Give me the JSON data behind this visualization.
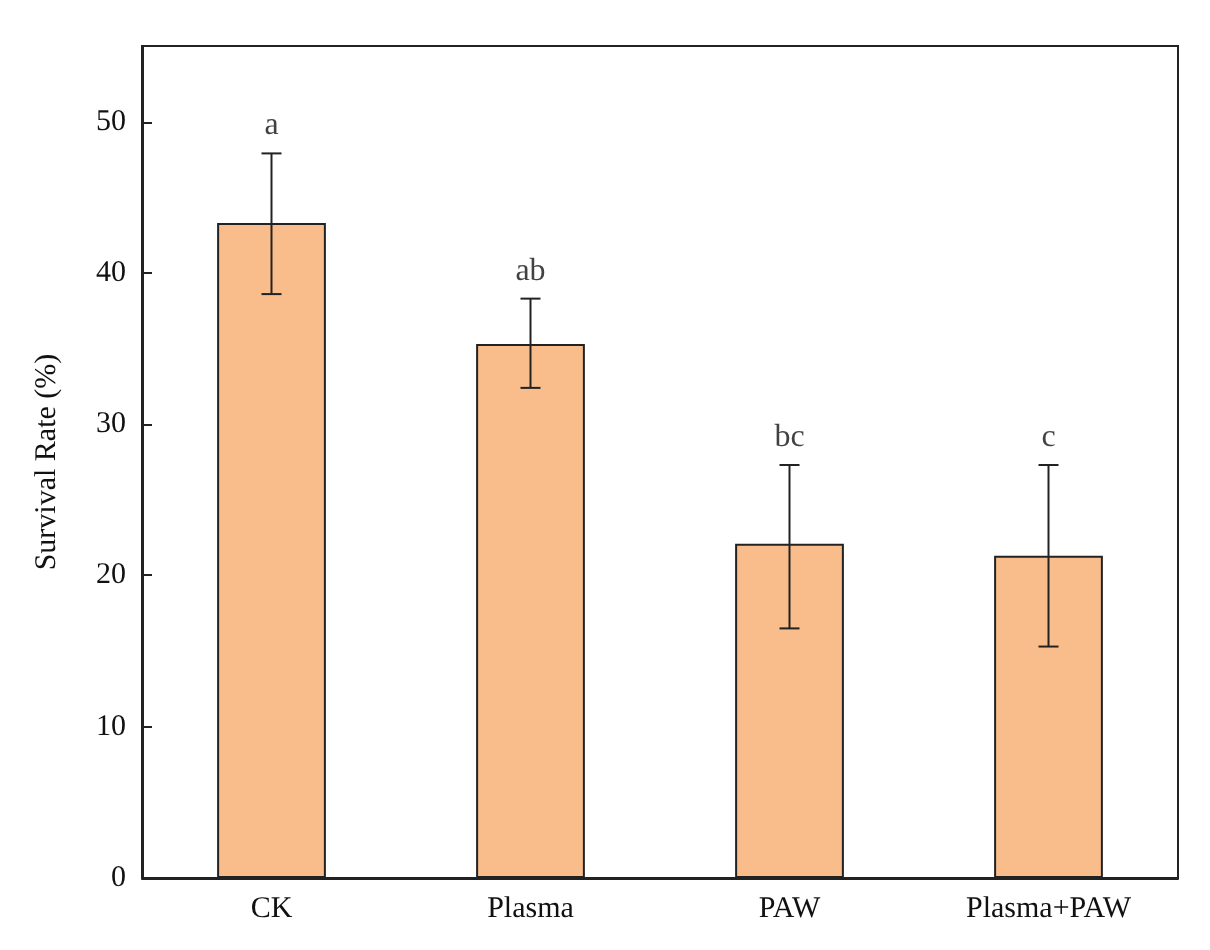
{
  "chart_data": {
    "type": "bar",
    "ylabel": "Survival Rate (%)",
    "categories": [
      "CK",
      "Plasma",
      "PAW",
      "Plasma+PAW"
    ],
    "values": [
      43.3,
      35.3,
      22.1,
      21.3
    ],
    "errors": [
      [
        38.6,
        47.9
      ],
      [
        32.4,
        38.3
      ],
      [
        16.5,
        27.3
      ],
      [
        15.3,
        27.3
      ]
    ],
    "color": "#f9bd8c",
    "ylim": [
      0,
      55
    ],
    "yticks": [
      0,
      10,
      20,
      30,
      40,
      50
    ],
    "grid": false,
    "annotations": [
      {
        "text": "a",
        "x": "CK",
        "y": 47.9
      },
      {
        "text": "ab",
        "x": "Plasma",
        "y": 38.3
      },
      {
        "text": "bc",
        "x": "PAW",
        "y": 27.3
      },
      {
        "text": "c",
        "x": "Plasma+PAW",
        "y": 27.3
      }
    ]
  }
}
